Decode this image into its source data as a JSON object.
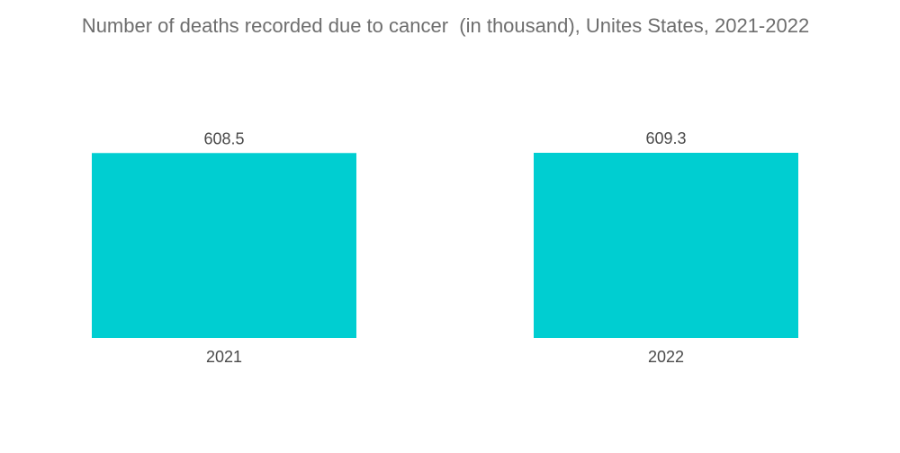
{
  "chart_data": {
    "type": "bar",
    "title": "Number of deaths recorded due to cancer  (in thousand), Unites States, 2021-2022",
    "categories": [
      "2021",
      "2022"
    ],
    "values": [
      608.5,
      609.3
    ],
    "value_labels": [
      "608.5",
      "609.3"
    ],
    "xlabel": "",
    "ylabel": "",
    "bar_color": "#00ced1",
    "grid": false,
    "legend": "none"
  }
}
